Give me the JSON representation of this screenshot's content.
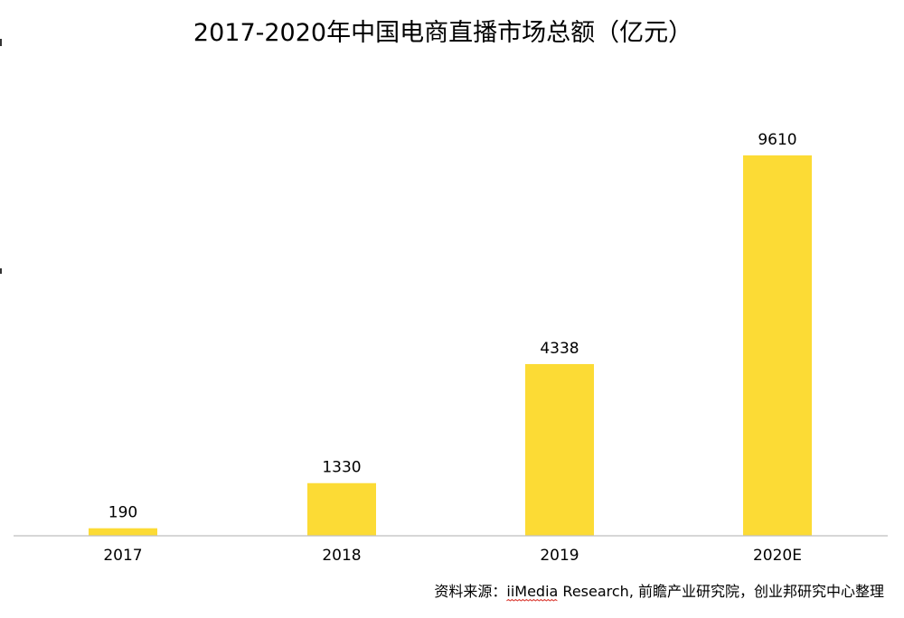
{
  "chart_data": {
    "type": "bar",
    "title": "2017-2020年中国电商直播市场总额（亿元）",
    "categories": [
      "2017",
      "2018",
      "2019",
      "2020E"
    ],
    "values": [
      190,
      1330,
      4338,
      9610
    ],
    "value_labels": [
      "190",
      "1330",
      "4338",
      "9610"
    ],
    "xlabel": "",
    "ylabel": "",
    "ylim": [
      0,
      9610
    ],
    "grid": false,
    "legend": "none",
    "bar_color": "#FCDB35",
    "source_prefix": "资料来源：",
    "source_underlined": "iiMedia",
    "source_suffix": " Research, 前瞻产业研究院，创业邦研究中心整理"
  }
}
